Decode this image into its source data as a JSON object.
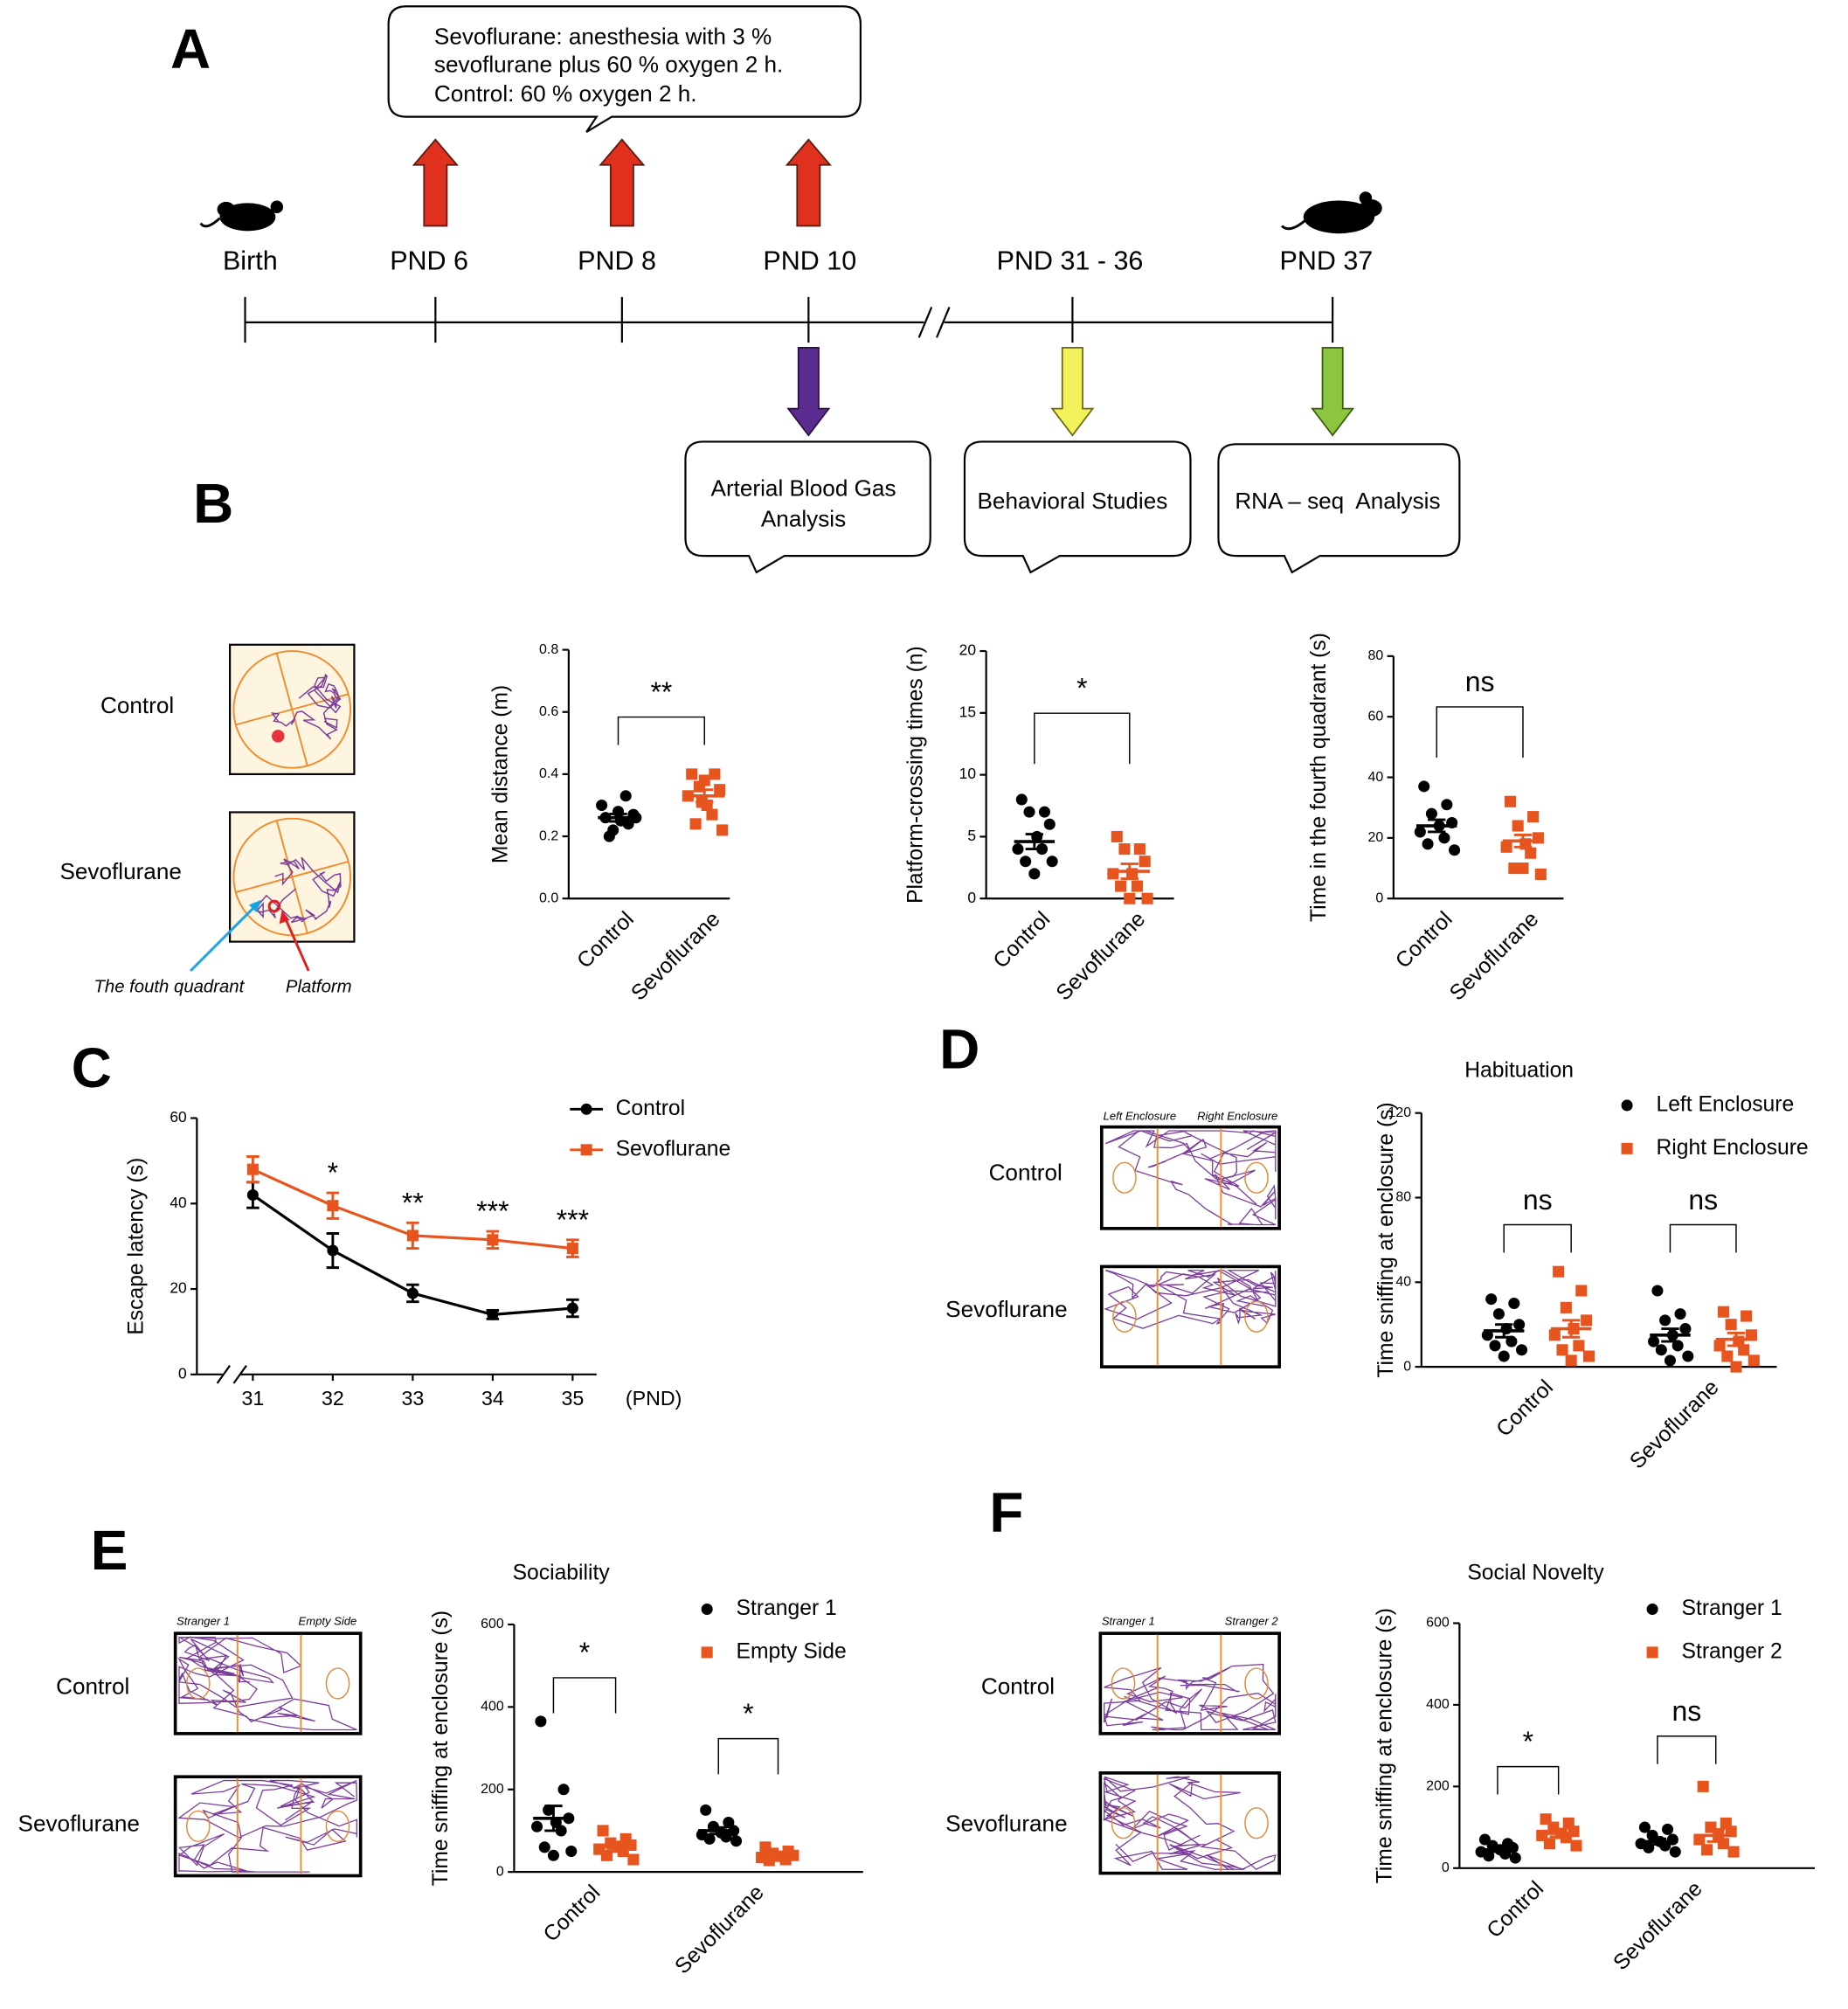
{
  "panel_labels": [
    "A",
    "B",
    "C",
    "D",
    "E",
    "F"
  ],
  "timeline": {
    "note": [
      "Sevoflurane: anesthesia with 3 %",
      "sevoflurane plus 60 % oxygen 2 h.",
      "Control: 60 % oxygen 2 h."
    ],
    "points": [
      "Birth",
      "PND 6",
      "PND 8",
      "PND 10",
      "PND 31 - 36",
      "PND 37"
    ],
    "boxes": [
      [
        "Arterial Blood Gas",
        "Analysis"
      ],
      [
        "Behavioral Studies"
      ],
      [
        "RNA – seq  Analysis"
      ]
    ]
  },
  "tracks": {
    "B": {
      "rows": [
        "Control",
        "Sevoflurane"
      ],
      "annotations": [
        "The fouth quadrant",
        "Platform"
      ]
    },
    "D": {
      "rows": [
        "Control",
        "Sevoflurane"
      ],
      "columns": [
        "Left Enclosure",
        "Right Enclosure"
      ]
    },
    "E": {
      "rows": [
        "Control",
        "Sevoflurane"
      ],
      "columns": [
        "Stranger 1",
        "Empty Side"
      ]
    },
    "F": {
      "rows": [
        "Control",
        "Sevoflurane"
      ],
      "columns": [
        "Stranger 1",
        "Stranger 2"
      ]
    }
  },
  "chart_data": [
    {
      "type": "dot",
      "ylabel": "Mean distance (m)",
      "categories": [
        "Control",
        "Sevoflurane"
      ],
      "colors": [
        "#000000",
        "#e8541e"
      ],
      "markers": [
        "circle",
        "square"
      ],
      "points": [
        [
          0.26,
          0.24,
          0.22,
          0.27,
          0.25,
          0.3,
          0.33,
          0.2,
          0.26,
          0.28
        ],
        [
          0.4,
          0.4,
          0.36,
          0.35,
          0.3,
          0.33,
          0.27,
          0.24,
          0.22,
          0.38,
          0.31
        ]
      ],
      "mean": [
        0.26,
        0.33
      ],
      "sem": [
        0.012,
        0.02
      ],
      "ylim": [
        0,
        0.8
      ],
      "yticks": [
        {
          "value": 0,
          "label": "0.0"
        },
        0.2,
        0.4,
        0.6,
        0.8
      ],
      "significance": [
        "**"
      ]
    },
    {
      "type": "dot",
      "ylabel": "Platform-crossing times (n)",
      "categories": [
        "Control",
        "Sevoflurane"
      ],
      "colors": [
        "#000000",
        "#e8541e"
      ],
      "markers": [
        "circle",
        "square"
      ],
      "points": [
        [
          8,
          7,
          7,
          6,
          5,
          4,
          4,
          3,
          3,
          2
        ],
        [
          5,
          4,
          4,
          3,
          2,
          2,
          1,
          1,
          0,
          0
        ]
      ],
      "mean": [
        4.6,
        2.2
      ],
      "sem": [
        0.6,
        0.6
      ],
      "ylim": [
        0,
        20
      ],
      "yticks": [
        0,
        5,
        10,
        15,
        20
      ],
      "significance": [
        "*"
      ]
    },
    {
      "type": "dot",
      "ylabel": "Time in the fourth quadrant (s)",
      "categories": [
        "Control",
        "Sevoflurane"
      ],
      "colors": [
        "#000000",
        "#e8541e"
      ],
      "markers": [
        "circle",
        "square"
      ],
      "points": [
        [
          37,
          31,
          28,
          25,
          24,
          22,
          20,
          18,
          16
        ],
        [
          32,
          27,
          24,
          20,
          18,
          17,
          15,
          10,
          8,
          10
        ]
      ],
      "mean": [
        24,
        19
      ],
      "sem": [
        2,
        2
      ],
      "ylim": [
        0,
        80
      ],
      "yticks": [
        0,
        20,
        40,
        60,
        80
      ],
      "significance": [
        "ns"
      ]
    },
    {
      "type": "line",
      "ylabel": "Escape latency (s)",
      "xlabel": "(PND)",
      "x": [
        31,
        32,
        33,
        34,
        35
      ],
      "xlim": [
        30.3,
        35.3
      ],
      "xticks": [
        31,
        32,
        33,
        34,
        35
      ],
      "ylim": [
        0,
        60
      ],
      "yticks": [
        0,
        20,
        40,
        60
      ],
      "series": [
        {
          "name": "Control",
          "color": "#000000",
          "marker": "circle",
          "values": [
            42,
            29,
            19,
            14,
            15.5
          ],
          "errors": [
            3,
            4,
            2,
            1,
            2
          ]
        },
        {
          "name": "Sevoflurane",
          "color": "#e8541e",
          "marker": "square",
          "values": [
            48,
            39.5,
            32.5,
            31.5,
            29.5
          ],
          "errors": [
            3,
            3,
            3,
            2,
            2
          ]
        }
      ],
      "significance": [
        null,
        "*",
        "**",
        "***",
        "***"
      ],
      "legend": "upper right"
    },
    {
      "type": "dot",
      "title": "Habituation",
      "ylabel": "Time sniffing at enclosure (s)",
      "categories": [
        "Control",
        "Sevoflurane"
      ],
      "series": [
        {
          "name": "Left Enclosure",
          "color": "#000000",
          "marker": "circle",
          "points": [
            [
              32,
              30,
              25,
              20,
              18,
              15,
              12,
              10,
              8,
              5
            ],
            [
              36,
              25,
              22,
              18,
              15,
              12,
              10,
              8,
              5,
              3
            ]
          ],
          "mean": [
            17,
            15
          ],
          "sem": [
            3,
            3
          ]
        },
        {
          "name": "Right Enclosure",
          "color": "#e8541e",
          "marker": "square",
          "points": [
            [
              45,
              36,
              28,
              22,
              18,
              15,
              10,
              8,
              5,
              3
            ],
            [
              26,
              24,
              20,
              15,
              12,
              10,
              8,
              5,
              3,
              0
            ]
          ],
          "mean": [
            18,
            13
          ],
          "sem": [
            4,
            3
          ]
        }
      ],
      "ylim": [
        0,
        120
      ],
      "yticks": [
        0,
        40,
        80,
        120
      ],
      "significance": [
        "ns",
        "ns"
      ],
      "legend": "upper right"
    },
    {
      "type": "dot",
      "title": "Sociability",
      "ylabel": "Time sniffing at enclosure (s)",
      "categories": [
        "Control",
        "Sevoflurane"
      ],
      "series": [
        {
          "name": "Stranger 1",
          "color": "#000000",
          "marker": "circle",
          "points": [
            [
              365,
              200,
              150,
              130,
              120,
              110,
              100,
              60,
              50,
              40
            ],
            [
              150,
              120,
              110,
              100,
              95,
              90,
              85,
              80,
              75
            ]
          ],
          "mean": [
            130,
            100
          ],
          "sem": [
            30,
            8
          ]
        },
        {
          "name": "Empty Side",
          "color": "#e8541e",
          "marker": "square",
          "points": [
            [
              100,
              80,
              70,
              65,
              60,
              55,
              50,
              40,
              30
            ],
            [
              60,
              50,
              45,
              40,
              38,
              35,
              30,
              28
            ]
          ],
          "mean": [
            65,
            42
          ],
          "sem": [
            8,
            4
          ]
        }
      ],
      "ylim": [
        0,
        600
      ],
      "yticks": [
        0,
        200,
        400,
        600
      ],
      "significance": [
        "*",
        "*"
      ],
      "legend": "upper right"
    },
    {
      "type": "dot",
      "title": "Social Novelty",
      "ylabel": "Time sniffing at enclosure (s)",
      "categories": [
        "Control",
        "Sevoflurane"
      ],
      "series": [
        {
          "name": "Stranger 1",
          "color": "#000000",
          "marker": "circle",
          "points": [
            [
              70,
              60,
              55,
              50,
              45,
              40,
              35,
              30,
              25
            ],
            [
              100,
              95,
              80,
              70,
              65,
              60,
              55,
              50,
              40
            ]
          ],
          "mean": [
            45,
            65
          ],
          "sem": [
            5,
            7
          ]
        },
        {
          "name": "Stranger 2",
          "color": "#e8541e",
          "marker": "square",
          "points": [
            [
              120,
              110,
              100,
              90,
              85,
              80,
              75,
              60,
              55
            ],
            [
              200,
              110,
              100,
              90,
              80,
              70,
              60,
              45,
              40
            ]
          ],
          "mean": [
            85,
            80
          ],
          "sem": [
            8,
            15
          ]
        }
      ],
      "ylim": [
        0,
        600
      ],
      "yticks": [
        0,
        200,
        400,
        600
      ],
      "significance": [
        "*",
        "ns"
      ],
      "legend": "upper right"
    }
  ]
}
